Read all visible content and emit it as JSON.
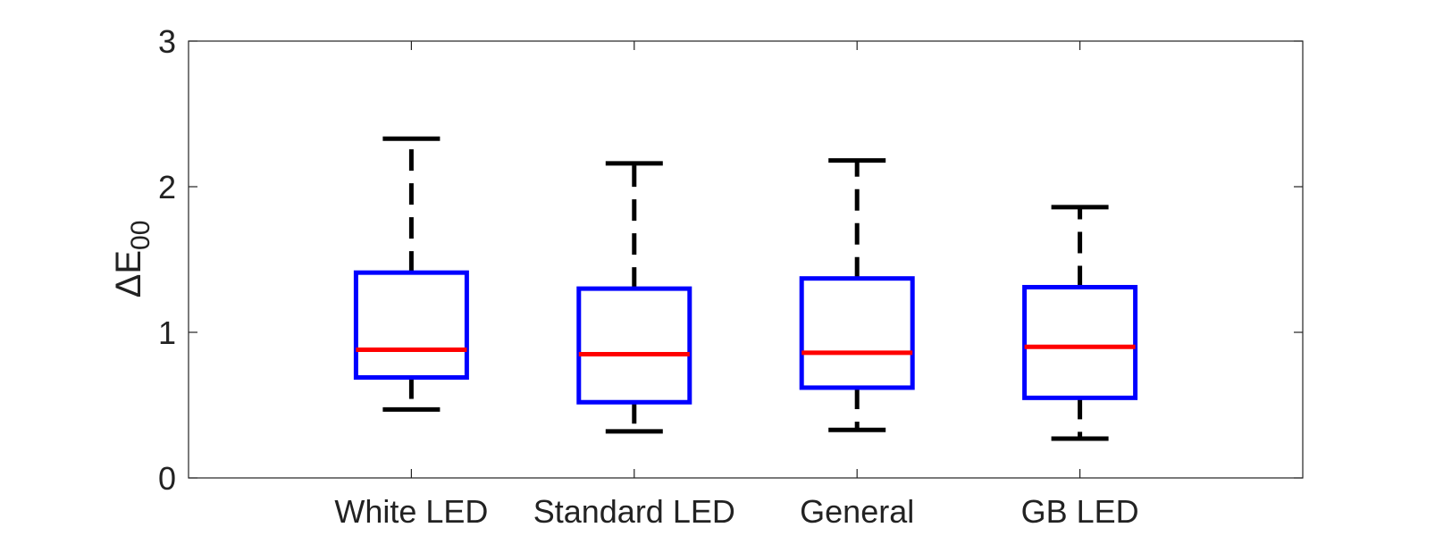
{
  "chart_data": {
    "type": "box",
    "categories": [
      "White LED",
      "Standard LED",
      "General",
      "GB LED"
    ],
    "boxes": [
      {
        "category": "White LED",
        "whisker_low": 0.47,
        "q1": 0.69,
        "median": 0.88,
        "q3": 1.41,
        "whisker_high": 2.33
      },
      {
        "category": "Standard LED",
        "whisker_low": 0.32,
        "q1": 0.52,
        "median": 0.85,
        "q3": 1.3,
        "whisker_high": 2.16
      },
      {
        "category": "General",
        "whisker_low": 0.33,
        "q1": 0.62,
        "median": 0.86,
        "q3": 1.37,
        "whisker_high": 2.18
      },
      {
        "category": "GB LED",
        "whisker_low": 0.27,
        "q1": 0.55,
        "median": 0.9,
        "q3": 1.31,
        "whisker_high": 1.86
      }
    ],
    "ylabel": "ΔE",
    "ylabel_subscript": "00",
    "xlabel": "",
    "ylim": [
      0,
      3
    ],
    "yticks": [
      0,
      1,
      2,
      3
    ],
    "grid": false,
    "colors": {
      "box": "#0000ff",
      "median": "#ff0000",
      "whisker": "#000000",
      "axis": "#222222"
    }
  }
}
